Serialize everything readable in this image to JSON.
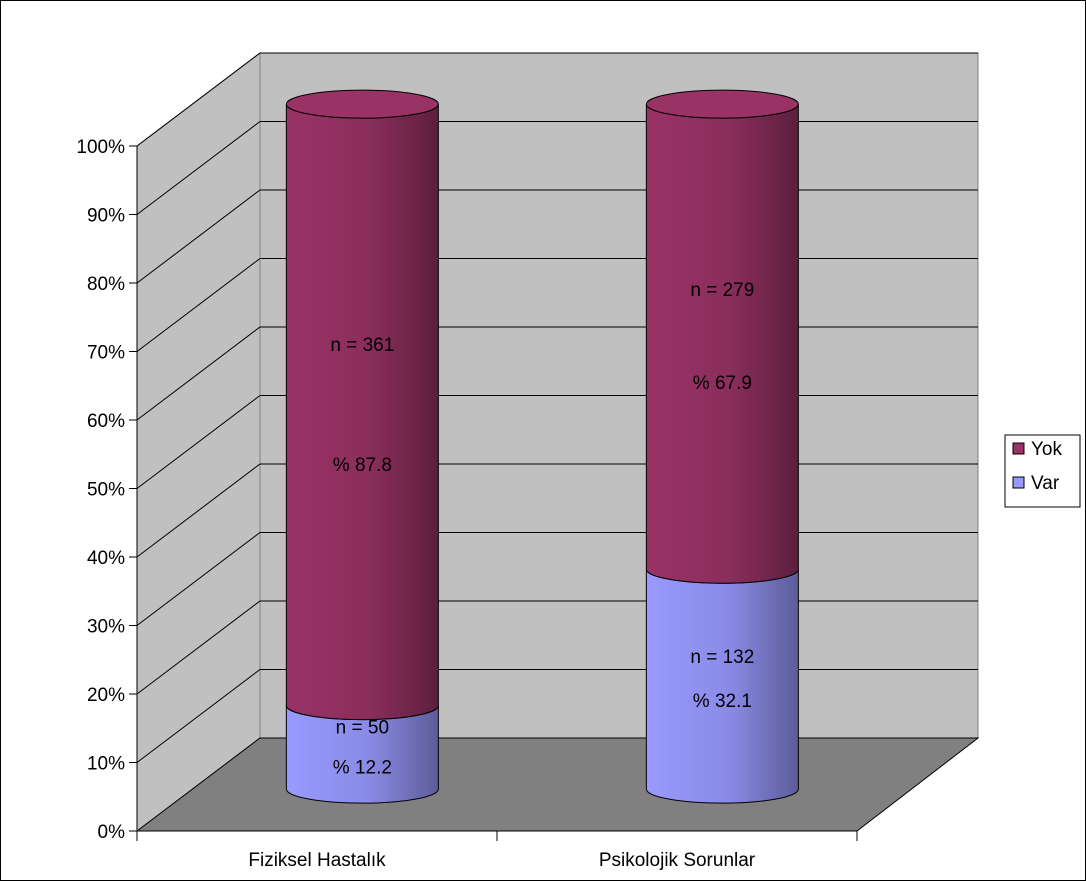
{
  "chart_data": {
    "type": "bar",
    "subtype": "stacked-percent-3d-cylinder",
    "categories": [
      "Fiziksel Hastalık",
      "Psikolojik Sorunlar"
    ],
    "series": [
      {
        "name": "Var",
        "color": "#9999ff",
        "values": [
          12.2,
          32.1
        ],
        "labels": [
          [
            "n = 50",
            "% 12.2"
          ],
          [
            "n = 132",
            "% 32.1"
          ]
        ]
      },
      {
        "name": "Yok",
        "color": "#993366",
        "values": [
          87.8,
          67.9
        ],
        "labels": [
          [
            "n = 361",
            "% 87.8"
          ],
          [
            "n = 279",
            "% 67.9"
          ]
        ]
      }
    ],
    "y_ticks": [
      "0%",
      "10%",
      "20%",
      "30%",
      "40%",
      "50%",
      "60%",
      "70%",
      "80%",
      "90%",
      "100%"
    ],
    "ylim": [
      0,
      100
    ],
    "grid": true,
    "legend": {
      "position": "right",
      "entries": [
        {
          "name": "Yok",
          "color": "#993366"
        },
        {
          "name": "Var",
          "color": "#9999ff"
        }
      ]
    },
    "colors": {
      "back_wall": "#c0c0c0",
      "side_wall": "#c0c0c0",
      "floor": "#808080",
      "gridline": "#000000"
    }
  }
}
